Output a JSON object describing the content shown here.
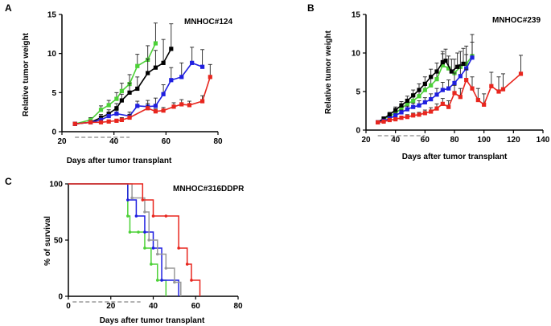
{
  "figure": {
    "panels": [
      "A",
      "B",
      "C"
    ]
  },
  "colors": {
    "black": "#000000",
    "green": "#4cd137",
    "blue": "#1f1fe0",
    "red": "#e8261e",
    "gray": "#999999",
    "dash": "#888888"
  },
  "chart_data": [
    {
      "panel": "A",
      "type": "line",
      "title": "MNHOC#124",
      "xlabel": "Days after tumor transplant",
      "ylabel": "Relative tumor weight",
      "xlim": [
        20,
        80
      ],
      "ylim": [
        0,
        15
      ],
      "xticks": [
        20,
        40,
        60,
        80
      ],
      "yticks": [
        0,
        5,
        10,
        15
      ],
      "treatment_window": [
        25,
        46
      ],
      "series": [
        {
          "name": "green",
          "color": "green",
          "x": [
            25,
            31,
            35,
            38,
            41,
            43,
            46,
            49,
            53,
            56
          ],
          "y": [
            1.0,
            1.5,
            2.8,
            3.4,
            4.2,
            5.2,
            6.1,
            8.4,
            9.2,
            11.3
          ],
          "err": [
            0.1,
            0.3,
            0.5,
            0.6,
            0.8,
            1.0,
            1.2,
            1.5,
            1.8,
            2.6
          ]
        },
        {
          "name": "black",
          "color": "black",
          "x": [
            25,
            31,
            35,
            38,
            41,
            43,
            46,
            49,
            53,
            56,
            59,
            62
          ],
          "y": [
            1.0,
            1.2,
            1.8,
            2.3,
            3.0,
            4.0,
            5.0,
            5.5,
            7.5,
            8.2,
            8.8,
            10.6
          ],
          "err": [
            0.1,
            0.2,
            0.4,
            0.5,
            0.6,
            0.8,
            1.2,
            1.5,
            1.8,
            2.2,
            3.0,
            3.2
          ]
        },
        {
          "name": "blue",
          "color": "blue",
          "x": [
            25,
            31,
            35,
            38,
            41,
            46,
            49,
            53,
            56,
            59,
            62,
            66,
            70,
            74
          ],
          "y": [
            1.0,
            1.2,
            1.5,
            2.0,
            2.3,
            2.0,
            3.3,
            3.2,
            3.3,
            4.8,
            6.6,
            7.0,
            8.8,
            8.3
          ],
          "err": [
            0.1,
            0.2,
            0.3,
            0.4,
            0.4,
            0.5,
            0.6,
            0.8,
            1.0,
            1.2,
            1.6,
            1.8,
            2.0,
            2.2
          ]
        },
        {
          "name": "red",
          "color": "red",
          "x": [
            25,
            31,
            35,
            38,
            41,
            43,
            46,
            53,
            56,
            59,
            63,
            66,
            69,
            74,
            77
          ],
          "y": [
            1.0,
            1.2,
            1.2,
            1.3,
            1.4,
            1.5,
            1.8,
            3.0,
            2.6,
            2.7,
            3.2,
            3.5,
            3.4,
            3.9,
            7.0
          ],
          "err": [
            0.1,
            0.1,
            0.2,
            0.2,
            0.2,
            0.3,
            0.4,
            0.6,
            0.3,
            0.4,
            0.5,
            0.6,
            0.5,
            0.7,
            1.6
          ]
        }
      ]
    },
    {
      "panel": "B",
      "type": "line",
      "title": "MNHOC#239",
      "xlabel": "Days after tumor transplant",
      "ylabel": "Relative tumor weight",
      "xlim": [
        20,
        140
      ],
      "ylim": [
        0,
        15
      ],
      "xticks": [
        20,
        40,
        60,
        80,
        100,
        120,
        140
      ],
      "yticks": [
        0,
        5,
        10,
        15
      ],
      "treatment_window": [
        28,
        60
      ],
      "series": [
        {
          "name": "green",
          "color": "green",
          "x": [
            28,
            32,
            36,
            40,
            44,
            48,
            52,
            56,
            60,
            64,
            68,
            72,
            76,
            80,
            84,
            88,
            92
          ],
          "y": [
            1.0,
            1.4,
            1.8,
            2.2,
            2.8,
            3.4,
            3.8,
            4.4,
            5.2,
            5.8,
            6.6,
            8.4,
            8.0,
            7.4,
            8.2,
            8.6,
            9.6
          ],
          "err": [
            0.1,
            0.2,
            0.3,
            0.4,
            0.5,
            0.6,
            0.7,
            0.8,
            1.0,
            1.1,
            1.2,
            1.5,
            1.6,
            1.8,
            2.0,
            2.3,
            2.8
          ]
        },
        {
          "name": "black",
          "color": "black",
          "x": [
            28,
            32,
            36,
            40,
            44,
            48,
            52,
            56,
            60,
            64,
            68,
            72,
            74,
            78,
            82,
            86
          ],
          "y": [
            1.0,
            1.5,
            2.0,
            2.6,
            3.2,
            3.8,
            4.5,
            5.2,
            6.0,
            6.9,
            7.6,
            8.8,
            9.0,
            7.6,
            8.2,
            8.6
          ],
          "err": [
            0.1,
            0.2,
            0.3,
            0.4,
            0.5,
            0.6,
            0.7,
            0.8,
            0.9,
            1.0,
            1.1,
            1.4,
            1.5,
            1.6,
            1.8,
            2.0
          ]
        },
        {
          "name": "blue",
          "color": "blue",
          "x": [
            28,
            32,
            36,
            40,
            44,
            48,
            52,
            56,
            60,
            64,
            68,
            72,
            76,
            80,
            84,
            88,
            92
          ],
          "y": [
            1.0,
            1.2,
            1.5,
            1.9,
            2.3,
            2.7,
            3.0,
            3.2,
            3.6,
            4.0,
            4.6,
            5.2,
            5.4,
            6.1,
            7.0,
            8.0,
            9.4
          ],
          "err": [
            0.1,
            0.1,
            0.2,
            0.3,
            0.3,
            0.4,
            0.5,
            0.6,
            0.6,
            0.7,
            0.8,
            1.0,
            1.1,
            1.3,
            1.5,
            1.8,
            2.0
          ]
        },
        {
          "name": "red",
          "color": "red",
          "x": [
            28,
            32,
            36,
            40,
            44,
            48,
            52,
            56,
            60,
            64,
            68,
            72,
            76,
            80,
            84,
            88,
            92,
            96,
            100,
            105,
            110,
            113,
            125
          ],
          "y": [
            1.0,
            1.1,
            1.3,
            1.4,
            1.6,
            1.7,
            1.9,
            2.0,
            2.2,
            2.4,
            2.8,
            3.4,
            3.0,
            4.8,
            4.3,
            6.5,
            5.4,
            3.9,
            3.3,
            5.7,
            5.0,
            5.3,
            7.3
          ],
          "err": [
            0.1,
            0.1,
            0.2,
            0.2,
            0.2,
            0.3,
            0.3,
            0.3,
            0.4,
            0.5,
            0.6,
            0.7,
            0.8,
            1.0,
            1.1,
            1.4,
            1.5,
            1.5,
            1.4,
            1.8,
            1.9,
            2.0,
            2.4
          ]
        }
      ]
    },
    {
      "panel": "C",
      "type": "survival",
      "title": "MNHOC#316DDPR",
      "xlabel": "Days after tumor transplant",
      "ylabel": "% of survival",
      "xlim": [
        0,
        80
      ],
      "ylim": [
        0,
        100
      ],
      "xticks": [
        0,
        20,
        40,
        60,
        80
      ],
      "yticks": [
        0,
        50,
        100
      ],
      "treatment_window": [
        2,
        34
      ],
      "series": [
        {
          "name": "green",
          "color": "green",
          "times": [
            0,
            28,
            29,
            33,
            36,
            39,
            42,
            46
          ],
          "surv": [
            100,
            71.4,
            57.1,
            57.1,
            42.9,
            28.6,
            14.3,
            0
          ]
        },
        {
          "name": "blue",
          "color": "blue",
          "times": [
            0,
            28,
            32,
            36,
            40,
            44,
            52
          ],
          "surv": [
            100,
            85.7,
            71.4,
            57.1,
            42.9,
            14.3,
            0
          ]
        },
        {
          "name": "gray",
          "color": "gray",
          "times": [
            0,
            30,
            36,
            38,
            42,
            46,
            50,
            53
          ],
          "surv": [
            100,
            87.5,
            75,
            50,
            37.5,
            25,
            12.5,
            0
          ]
        },
        {
          "name": "red",
          "color": "red",
          "times": [
            0,
            35,
            40,
            46,
            52,
            56,
            58,
            62
          ],
          "surv": [
            100,
            85.7,
            71.4,
            71.4,
            42.9,
            28.6,
            14.3,
            0
          ]
        }
      ]
    }
  ]
}
